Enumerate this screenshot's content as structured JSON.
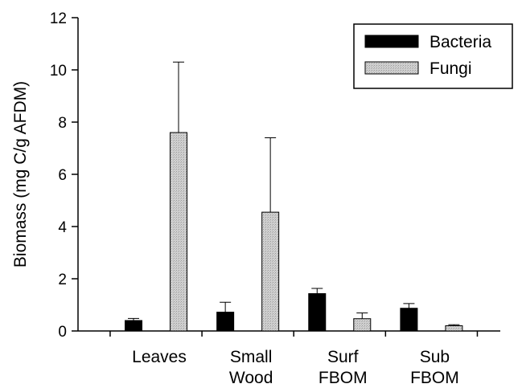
{
  "chart_data": {
    "type": "bar",
    "ylabel": "Biomass (mg C/g AFDM)",
    "xlabel": "",
    "ylim": [
      0,
      12
    ],
    "yticks": [
      "0",
      "2",
      "4",
      "6",
      "8",
      "10",
      "12"
    ],
    "categories": [
      [
        "Leaves"
      ],
      [
        "Small",
        "Wood"
      ],
      [
        "Surf",
        "FBOM"
      ],
      [
        "Sub",
        "FBOM"
      ]
    ],
    "series": [
      {
        "name": "Bacteria",
        "color": "#000000",
        "values": [
          0.4,
          0.72,
          1.43,
          0.87
        ],
        "errors": [
          0.08,
          0.38,
          0.2,
          0.18
        ]
      },
      {
        "name": "Fungi",
        "color": "#d0d0d0",
        "values": [
          7.6,
          4.55,
          0.47,
          0.2
        ],
        "errors": [
          2.7,
          2.85,
          0.22,
          0.04
        ]
      }
    ],
    "legend_position": "top-right",
    "grid": false,
    "error_bars": "upper"
  }
}
